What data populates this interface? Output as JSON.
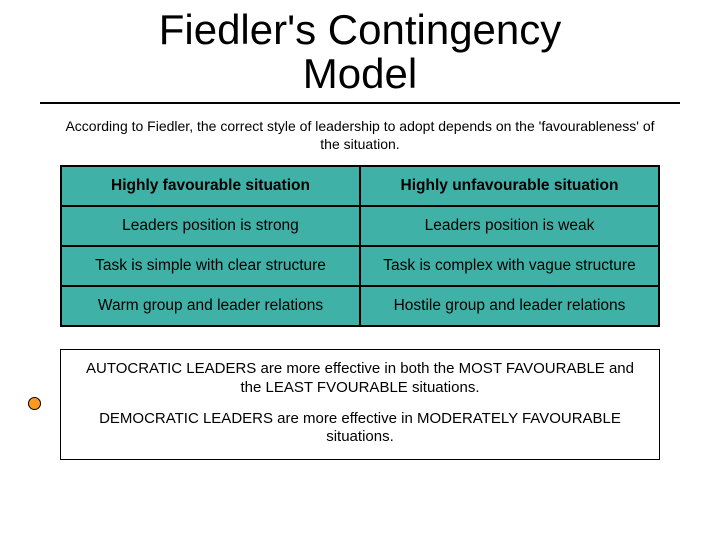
{
  "title_line1": "Fiedler's Contingency",
  "title_line2": "Model",
  "subtitle": "According to Fiedler, the correct style of leadership to adopt depends on the 'favourableness' of the situation.",
  "table": {
    "background_color": "#3fb1a7",
    "border_color": "#000000",
    "columns": [
      "favourable",
      "unfavourable"
    ],
    "rows": [
      [
        "Highly favourable situation",
        "Highly unfavourable situation"
      ],
      [
        "Leaders position is strong",
        "Leaders position is weak"
      ],
      [
        "Task is simple with clear structure",
        "Task is complex with vague structure"
      ],
      [
        "Warm group and leader relations",
        "Hostile group and leader relations"
      ]
    ]
  },
  "footer": {
    "p1": "AUTOCRATIC LEADERS are more effective in both the MOST FAVOURABLE and the LEAST FVOURABLE situations.",
    "p2": "DEMOCRATIC LEADERS are more effective in MODERATELY FAVOURABLE situations."
  },
  "bullet_color": "#ff9a1f",
  "title_fontsize": 42,
  "body_fontsize": 15.5
}
